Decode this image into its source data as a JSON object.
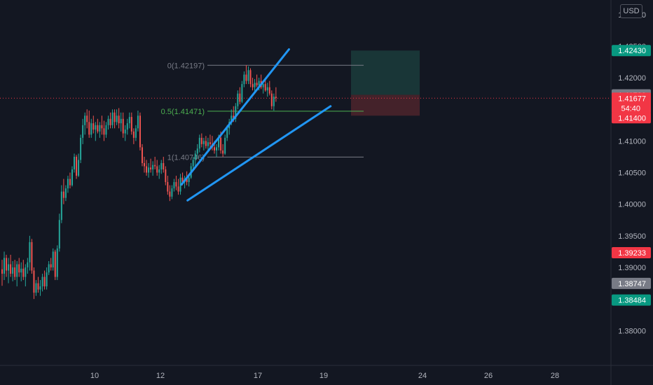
{
  "currency_label": "USD",
  "countdown": "54:40",
  "colors": {
    "background": "#131722",
    "up_candle": "#26a69a",
    "down_candle": "#ef5350",
    "trendline": "#2196f3",
    "fib_line": "#787b86",
    "fib_mid_line": "#4caf50",
    "axis_text": "#b2b5be",
    "profit_zone": "#1b3a3a",
    "loss_zone": "#4a232b"
  },
  "chart_data": {
    "type": "candlestick",
    "symbol_currency": "USD",
    "x_tick_labels": [
      "10",
      "12",
      "17",
      "19",
      "24",
      "26",
      "28"
    ],
    "y_tick_labels": [
      "1.43000",
      "1.42500",
      "1.42000",
      "1.41000",
      "1.40500",
      "1.40000",
      "1.39500",
      "1.39000",
      "1.38000"
    ],
    "y_range": [
      1.3745,
      1.4323
    ],
    "fibonacci": [
      {
        "label": "0(1.42197)",
        "value": 1.42197
      },
      {
        "label": "0.5(1.41471)",
        "value": 1.41471
      },
      {
        "label": "1(1.40746)",
        "value": 1.40746
      }
    ],
    "price_labels": [
      {
        "text": "1.42430",
        "value": 1.4243,
        "color": "#089981"
      },
      {
        "text": "1.41730",
        "value": 1.4173,
        "color": "#787b86"
      },
      {
        "text": "1.41677",
        "value": 1.41677,
        "color": "#f23645"
      },
      {
        "text": "1.41400",
        "value": 1.414,
        "color": "#f23645"
      },
      {
        "text": "1.39233",
        "value": 1.39233,
        "color": "#f23645"
      },
      {
        "text": "1.38747",
        "value": 1.38747,
        "color": "#787b86"
      },
      {
        "text": "1.38484",
        "value": 1.38484,
        "color": "#089981"
      }
    ],
    "current_price": 1.41677,
    "trade_box": {
      "entry": 1.4173,
      "target": 1.4243,
      "stop": 1.414
    },
    "trendlines": [
      {
        "from": {
          "x_frac": 0.297,
          "price": 1.4031
        },
        "to": {
          "x_frac": 0.473,
          "price": 1.4245
        }
      },
      {
        "from": {
          "x_frac": 0.307,
          "price": 1.4006
        },
        "to": {
          "x_frac": 0.541,
          "price": 1.4155
        }
      }
    ],
    "candles": [
      [
        1.3897,
        1.3912,
        1.3871,
        1.389
      ],
      [
        1.389,
        1.3925,
        1.388,
        1.3915
      ],
      [
        1.3915,
        1.392,
        1.3885,
        1.3895
      ],
      [
        1.3895,
        1.3915,
        1.3875,
        1.3905
      ],
      [
        1.3905,
        1.392,
        1.3885,
        1.389
      ],
      [
        1.389,
        1.391,
        1.3878,
        1.39
      ],
      [
        1.39,
        1.3912,
        1.388,
        1.3885
      ],
      [
        1.3885,
        1.391,
        1.387,
        1.3905
      ],
      [
        1.3905,
        1.3915,
        1.3885,
        1.3892
      ],
      [
        1.3892,
        1.3908,
        1.3878,
        1.3898
      ],
      [
        1.3898,
        1.3912,
        1.388,
        1.3885
      ],
      [
        1.3885,
        1.3905,
        1.387,
        1.39
      ],
      [
        1.39,
        1.3915,
        1.389,
        1.3908
      ],
      [
        1.3908,
        1.395,
        1.3895,
        1.394
      ],
      [
        1.394,
        1.3945,
        1.389,
        1.3895
      ],
      [
        1.3895,
        1.39,
        1.385,
        1.386
      ],
      [
        1.386,
        1.388,
        1.3855,
        1.3875
      ],
      [
        1.3875,
        1.3885,
        1.386,
        1.3865
      ],
      [
        1.3865,
        1.388,
        1.3855,
        1.387
      ],
      [
        1.387,
        1.389,
        1.3862,
        1.3885
      ],
      [
        1.3885,
        1.3895,
        1.3865,
        1.387
      ],
      [
        1.387,
        1.39,
        1.3865,
        1.3892
      ],
      [
        1.3892,
        1.391,
        1.3888,
        1.3905
      ],
      [
        1.3905,
        1.3915,
        1.3895,
        1.39
      ],
      [
        1.39,
        1.393,
        1.3895,
        1.3925
      ],
      [
        1.3925,
        1.3928,
        1.388,
        1.3885
      ],
      [
        1.3885,
        1.3935,
        1.388,
        1.393
      ],
      [
        1.393,
        1.3985,
        1.3925,
        1.3975
      ],
      [
        1.3975,
        1.403,
        1.397,
        1.402
      ],
      [
        1.402,
        1.404,
        1.4,
        1.401
      ],
      [
        1.401,
        1.403,
        1.4005,
        1.4025
      ],
      [
        1.4025,
        1.4045,
        1.4018,
        1.404
      ],
      [
        1.404,
        1.405,
        1.4025,
        1.403
      ],
      [
        1.403,
        1.406,
        1.4028,
        1.4055
      ],
      [
        1.4055,
        1.408,
        1.405,
        1.4075
      ],
      [
        1.4075,
        1.4078,
        1.404,
        1.4045
      ],
      [
        1.4045,
        1.408,
        1.4043,
        1.407
      ],
      [
        1.407,
        1.411,
        1.4065,
        1.4105
      ],
      [
        1.4105,
        1.4135,
        1.4095,
        1.4125
      ],
      [
        1.4125,
        1.4145,
        1.411,
        1.414
      ],
      [
        1.414,
        1.415,
        1.412,
        1.413
      ],
      [
        1.413,
        1.4148,
        1.4105,
        1.411
      ],
      [
        1.411,
        1.4135,
        1.4105,
        1.4128
      ],
      [
        1.4128,
        1.414,
        1.4112,
        1.4118
      ],
      [
        1.4118,
        1.413,
        1.41,
        1.4125
      ],
      [
        1.4125,
        1.4135,
        1.4112,
        1.4115
      ],
      [
        1.4115,
        1.413,
        1.4105,
        1.4125
      ],
      [
        1.4125,
        1.414,
        1.411,
        1.412
      ],
      [
        1.412,
        1.4132,
        1.41,
        1.411
      ],
      [
        1.411,
        1.413,
        1.4105,
        1.4125
      ],
      [
        1.4125,
        1.414,
        1.4118,
        1.4135
      ],
      [
        1.4135,
        1.4145,
        1.412,
        1.4125
      ],
      [
        1.4125,
        1.415,
        1.412,
        1.4145
      ],
      [
        1.4145,
        1.415,
        1.412,
        1.413
      ],
      [
        1.413,
        1.415,
        1.4125,
        1.414
      ],
      [
        1.414,
        1.4152,
        1.412,
        1.4128
      ],
      [
        1.4128,
        1.4145,
        1.4115,
        1.4135
      ],
      [
        1.4135,
        1.4145,
        1.4105,
        1.4112
      ],
      [
        1.4112,
        1.4125,
        1.41,
        1.4118
      ],
      [
        1.4118,
        1.4135,
        1.411,
        1.4128
      ],
      [
        1.4128,
        1.4145,
        1.412,
        1.4138
      ],
      [
        1.4138,
        1.4145,
        1.411,
        1.4115
      ],
      [
        1.4115,
        1.412,
        1.4095,
        1.4105
      ],
      [
        1.4105,
        1.4125,
        1.41,
        1.412
      ],
      [
        1.412,
        1.4148,
        1.4115,
        1.414
      ],
      [
        1.414,
        1.4145,
        1.4085,
        1.409
      ],
      [
        1.409,
        1.4095,
        1.406,
        1.4065
      ],
      [
        1.4065,
        1.4075,
        1.405,
        1.406
      ],
      [
        1.406,
        1.407,
        1.4045,
        1.405
      ],
      [
        1.405,
        1.4065,
        1.4042,
        1.4058
      ],
      [
        1.4058,
        1.4072,
        1.405,
        1.4055
      ],
      [
        1.4055,
        1.4068,
        1.4045,
        1.4062
      ],
      [
        1.4062,
        1.4075,
        1.4055,
        1.406
      ],
      [
        1.406,
        1.407,
        1.4045,
        1.405
      ],
      [
        1.405,
        1.4062,
        1.404,
        1.4055
      ],
      [
        1.4055,
        1.407,
        1.4048,
        1.4065
      ],
      [
        1.4065,
        1.4075,
        1.405,
        1.4055
      ],
      [
        1.4055,
        1.406,
        1.403,
        1.4035
      ],
      [
        1.4035,
        1.4045,
        1.4015,
        1.402
      ],
      [
        1.402,
        1.403,
        1.4005,
        1.4012
      ],
      [
        1.4012,
        1.403,
        1.4008,
        1.4025
      ],
      [
        1.4025,
        1.404,
        1.402,
        1.4035
      ],
      [
        1.4035,
        1.4045,
        1.4022,
        1.4028
      ],
      [
        1.4028,
        1.404,
        1.4015,
        1.402
      ],
      [
        1.402,
        1.4048,
        1.4015,
        1.4042
      ],
      [
        1.4042,
        1.405,
        1.403,
        1.4035
      ],
      [
        1.4035,
        1.4045,
        1.4025,
        1.404
      ],
      [
        1.404,
        1.4052,
        1.403,
        1.4035
      ],
      [
        1.4035,
        1.4048,
        1.4028,
        1.4042
      ],
      [
        1.4042,
        1.4065,
        1.404,
        1.406
      ],
      [
        1.406,
        1.4075,
        1.4055,
        1.407
      ],
      [
        1.407,
        1.4085,
        1.406,
        1.408
      ],
      [
        1.408,
        1.4095,
        1.4072,
        1.4088
      ],
      [
        1.4088,
        1.411,
        1.4082,
        1.4105
      ],
      [
        1.4105,
        1.4112,
        1.409,
        1.4095
      ],
      [
        1.4095,
        1.4105,
        1.4085,
        1.41
      ],
      [
        1.41,
        1.4108,
        1.4088,
        1.4092
      ],
      [
        1.4092,
        1.4105,
        1.4085,
        1.4098
      ],
      [
        1.4098,
        1.411,
        1.409,
        1.4095
      ],
      [
        1.4095,
        1.4108,
        1.4085,
        1.409
      ],
      [
        1.409,
        1.41,
        1.408,
        1.4085
      ],
      [
        1.4085,
        1.4095,
        1.4075,
        1.409
      ],
      [
        1.409,
        1.411,
        1.4085,
        1.4105
      ],
      [
        1.4105,
        1.4115,
        1.408,
        1.4085
      ],
      [
        1.4085,
        1.4095,
        1.4075,
        1.408
      ],
      [
        1.408,
        1.411,
        1.4078,
        1.4105
      ],
      [
        1.4105,
        1.4125,
        1.41,
        1.412
      ],
      [
        1.412,
        1.4135,
        1.411,
        1.413
      ],
      [
        1.413,
        1.415,
        1.4125,
        1.414
      ],
      [
        1.414,
        1.4155,
        1.413,
        1.4135
      ],
      [
        1.4135,
        1.416,
        1.413,
        1.4155
      ],
      [
        1.4155,
        1.418,
        1.415,
        1.4175
      ],
      [
        1.4175,
        1.4185,
        1.4158,
        1.4162
      ],
      [
        1.4162,
        1.4195,
        1.416,
        1.419
      ],
      [
        1.419,
        1.421,
        1.4185,
        1.4205
      ],
      [
        1.4205,
        1.422,
        1.419,
        1.4195
      ],
      [
        1.4195,
        1.4218,
        1.419,
        1.4212
      ],
      [
        1.4212,
        1.4215,
        1.4185,
        1.419
      ],
      [
        1.419,
        1.42,
        1.418,
        1.4185
      ],
      [
        1.4185,
        1.4198,
        1.4178,
        1.4192
      ],
      [
        1.4192,
        1.4205,
        1.4185,
        1.4188
      ],
      [
        1.4188,
        1.42,
        1.418,
        1.4195
      ],
      [
        1.4195,
        1.4205,
        1.4182,
        1.4185
      ],
      [
        1.4185,
        1.4195,
        1.4175,
        1.419
      ],
      [
        1.419,
        1.42,
        1.4178,
        1.418
      ],
      [
        1.418,
        1.4192,
        1.417,
        1.4185
      ],
      [
        1.4185,
        1.4195,
        1.4172,
        1.4175
      ],
      [
        1.4175,
        1.418,
        1.415,
        1.4155
      ],
      [
        1.4155,
        1.4175,
        1.4148,
        1.417
      ],
      [
        1.417,
        1.4185,
        1.4162,
        1.4168
      ]
    ]
  }
}
